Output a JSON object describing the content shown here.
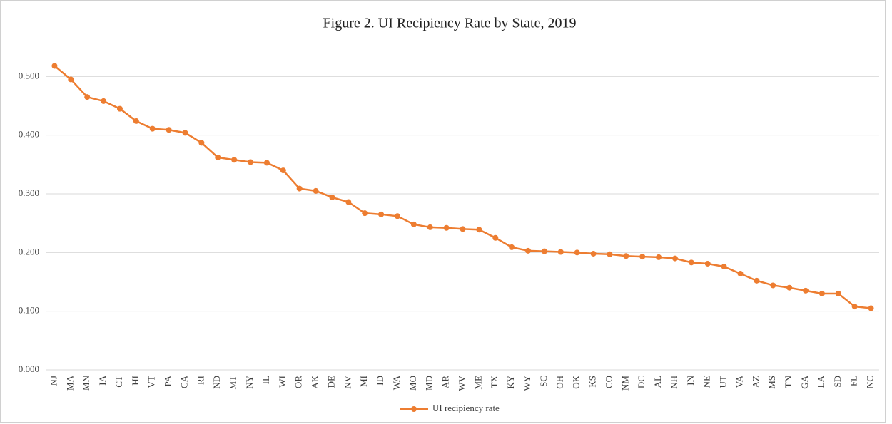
{
  "chart_data": {
    "type": "line",
    "title": "Figure 2. UI Recipiency Rate by State, 2019",
    "categories": [
      "NJ",
      "MA",
      "MN",
      "IA",
      "CT",
      "HI",
      "VT",
      "PA",
      "CA",
      "RI",
      "ND",
      "MT",
      "NY",
      "IL",
      "WI",
      "OR",
      "AK",
      "DE",
      "NV",
      "MI",
      "ID",
      "WA",
      "MO",
      "MD",
      "AR",
      "WV",
      "ME",
      "TX",
      "KY",
      "WY",
      "SC",
      "OH",
      "OK",
      "KS",
      "CO",
      "NM",
      "DC",
      "AL",
      "NH",
      "IN",
      "NE",
      "UT",
      "VA",
      "AZ",
      "MS",
      "TN",
      "GA",
      "LA",
      "SD",
      "FL",
      "NC"
    ],
    "series": [
      {
        "name": "UI recipiency rate",
        "color": "#ED7D31",
        "values": [
          0.518,
          0.495,
          0.465,
          0.458,
          0.445,
          0.424,
          0.411,
          0.409,
          0.404,
          0.387,
          0.362,
          0.358,
          0.354,
          0.353,
          0.34,
          0.309,
          0.305,
          0.294,
          0.286,
          0.267,
          0.265,
          0.262,
          0.248,
          0.243,
          0.242,
          0.24,
          0.239,
          0.225,
          0.209,
          0.203,
          0.202,
          0.201,
          0.2,
          0.198,
          0.197,
          0.194,
          0.193,
          0.192,
          0.19,
          0.183,
          0.181,
          0.176,
          0.164,
          0.152,
          0.144,
          0.14,
          0.135,
          0.13,
          0.13,
          0.108,
          0.105
        ]
      }
    ],
    "ylim": [
      0,
      0.6
    ],
    "yticks": [
      {
        "value": 0,
        "label": "0.000"
      },
      {
        "value": 0.1,
        "label": "0.100"
      },
      {
        "value": 0.2,
        "label": "0.200"
      },
      {
        "value": 0.3,
        "label": "0.300"
      },
      {
        "value": 0.4,
        "label": "0.400"
      },
      {
        "value": 0.5,
        "label": "0.500"
      }
    ],
    "grid": true,
    "legend": "bottom"
  }
}
